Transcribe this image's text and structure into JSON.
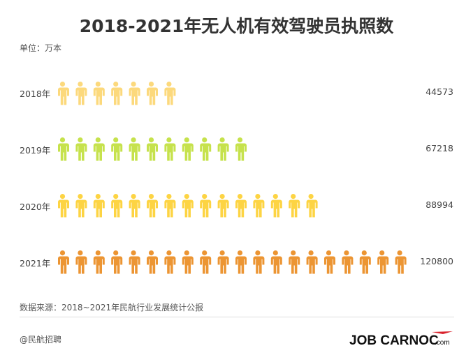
{
  "chart_data": {
    "type": "pictograph",
    "title": "2018-2021年无人机有效驾驶员执照数",
    "unit_label": "单位：万本",
    "categories": [
      "2018年",
      "2019年",
      "2020年",
      "2021年"
    ],
    "values": [
      44573,
      67218,
      88994,
      120800
    ],
    "value_labels": [
      "44573",
      "67218",
      "88994",
      "120800"
    ],
    "icon_counts": [
      7,
      11,
      15,
      20
    ],
    "icon": "person-icon",
    "colors": [
      "#fcd97c",
      "#c6e24c",
      "#fdd443",
      "#ec9533"
    ],
    "source": "数据来源：2018~2021年民航行业发展统计公报"
  },
  "footer": {
    "credit": "@民航招聘",
    "logo_text": "JOB CARNOC.com",
    "logo_accent": "#d9232d"
  }
}
